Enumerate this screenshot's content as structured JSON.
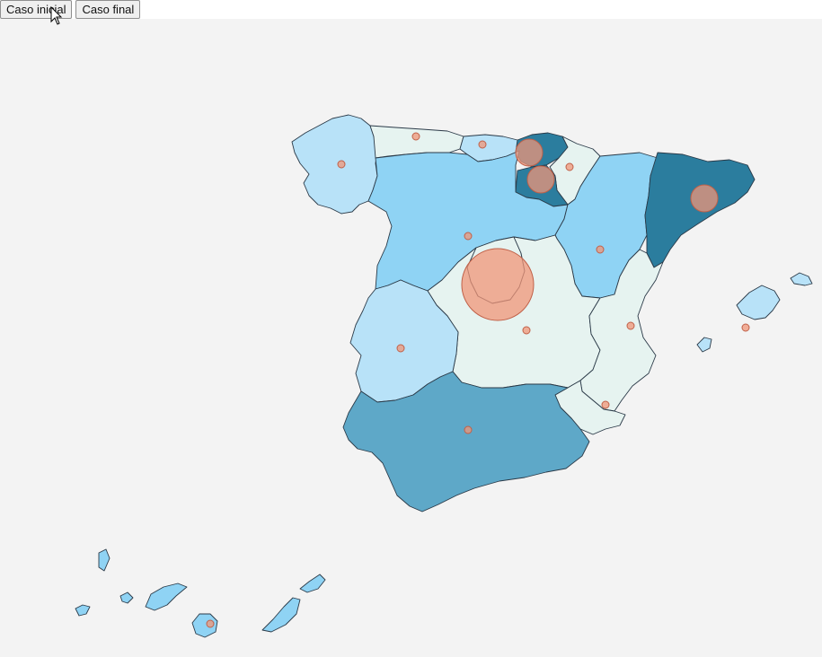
{
  "buttons": {
    "initial": "Caso inicial",
    "final": "Caso final"
  },
  "colors": {
    "background": "#f3f3f3",
    "level_0": "#e6f3f0",
    "level_1": "#b8e2f8",
    "level_2": "#8fd3f4",
    "level_3": "#5ea8c8",
    "level_4": "#2b7d9e",
    "bubble": "#f0967a",
    "border": "#2b3a48"
  },
  "map": {
    "regions": [
      {
        "id": "galicia",
        "level": 1
      },
      {
        "id": "asturias",
        "level": 0
      },
      {
        "id": "cantabria",
        "level": 1
      },
      {
        "id": "pais-vasco",
        "level": 4
      },
      {
        "id": "navarra",
        "level": 0
      },
      {
        "id": "la-rioja",
        "level": 4
      },
      {
        "id": "aragon",
        "level": 2
      },
      {
        "id": "cataluna",
        "level": 4
      },
      {
        "id": "castilla-y-leon",
        "level": 2
      },
      {
        "id": "madrid",
        "level": 0
      },
      {
        "id": "castilla-la-mancha",
        "level": 0
      },
      {
        "id": "extremadura",
        "level": 1
      },
      {
        "id": "valencia",
        "level": 0
      },
      {
        "id": "murcia",
        "level": 0
      },
      {
        "id": "andalucia",
        "level": 3
      },
      {
        "id": "baleares",
        "level": 1
      },
      {
        "id": "canarias",
        "level": 2
      }
    ]
  }
}
